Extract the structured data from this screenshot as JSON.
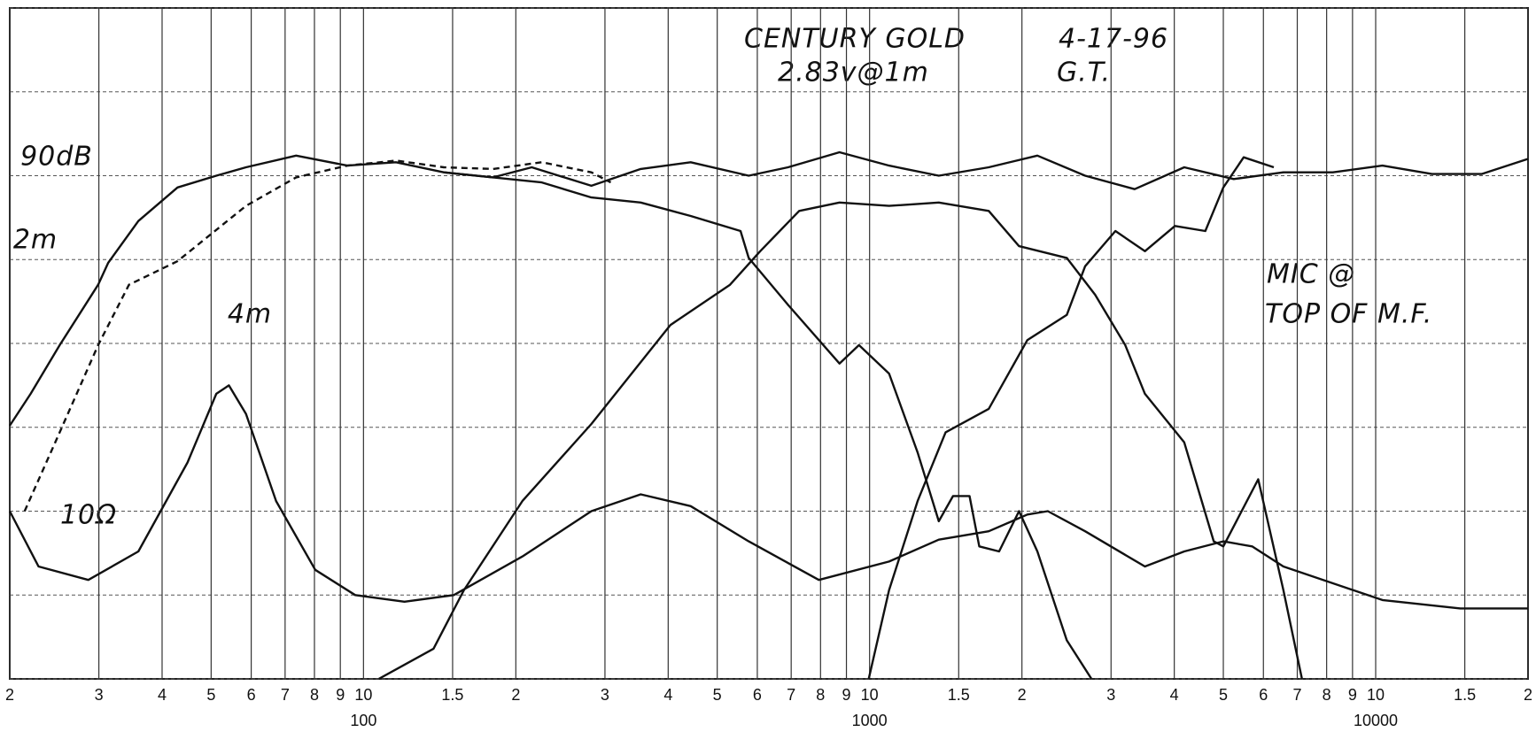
{
  "chart_data": {
    "type": "line",
    "annotations": [
      "CENTURY GOLD",
      "2.83v@1m",
      "4-17-96",
      "G.T.",
      "90dB",
      "2m",
      "4m",
      "10Ω",
      "MIC @",
      "TOP OF M.F."
    ],
    "log_x": true,
    "grid": true,
    "color": "#111",
    "xlim": [
      20,
      20000
    ],
    "ylim": [
      60,
      100
    ],
    "xticks": [
      {
        "value": 20,
        "label": "2"
      },
      {
        "value": 30,
        "label": "3"
      },
      {
        "value": 40,
        "label": "4"
      },
      {
        "value": 50,
        "label": "5"
      },
      {
        "value": 60,
        "label": "6"
      },
      {
        "value": 70,
        "label": "7"
      },
      {
        "value": 80,
        "label": "8"
      },
      {
        "value": 90,
        "label": "9"
      },
      {
        "value": 100,
        "label": "10"
      },
      {
        "value": 150,
        "label": "1.5"
      },
      {
        "value": 200,
        "label": "2"
      },
      {
        "value": 300,
        "label": "3"
      },
      {
        "value": 400,
        "label": "4"
      },
      {
        "value": 500,
        "label": "5"
      },
      {
        "value": 600,
        "label": "6"
      },
      {
        "value": 700,
        "label": "7"
      },
      {
        "value": 800,
        "label": "8"
      },
      {
        "value": 900,
        "label": "9"
      },
      {
        "value": 1000,
        "label": "10"
      },
      {
        "value": 1500,
        "label": "1.5"
      },
      {
        "value": 2000,
        "label": "2"
      },
      {
        "value": 3000,
        "label": "3"
      },
      {
        "value": 4000,
        "label": "4"
      },
      {
        "value": 5000,
        "label": "5"
      },
      {
        "value": 6000,
        "label": "6"
      },
      {
        "value": 7000,
        "label": "7"
      },
      {
        "value": 8000,
        "label": "8"
      },
      {
        "value": 9000,
        "label": "9"
      },
      {
        "value": 10000,
        "label": "10"
      },
      {
        "value": 15000,
        "label": "1.5"
      },
      {
        "value": 20000,
        "label": "2"
      }
    ],
    "xticks_decade": [
      100,
      1000,
      10000
    ],
    "yticks": [
      60,
      65,
      70,
      75,
      80,
      85,
      90,
      95,
      100
    ],
    "series": [
      {
        "color": "#111",
        "x": [
          20,
          22,
          25.1,
          29.9,
          31.3,
          35.9,
          42.9,
          51.2,
          58.6,
          73.6,
          92.9,
          115.9,
          144.1,
          180.4,
          215,
          282,
          353,
          443,
          577,
          690,
          872,
          1093,
          1370,
          1720,
          2146,
          2666,
          3340,
          4186,
          5244,
          6570,
          8230,
          10310,
          12920,
          16190,
          20000
        ],
        "values": [
          75.1,
          77.0,
          79.9,
          83.5,
          84.8,
          87.3,
          89.3,
          90.0,
          90.5,
          91.2,
          90.6,
          90.8,
          90.2,
          89.9,
          90.5,
          89.4,
          90.4,
          90.8,
          90.0,
          90.5,
          91.4,
          90.6,
          90.0,
          90.5,
          91.2,
          90.0,
          89.2,
          90.5,
          89.8,
          90.2,
          90.2,
          90.6,
          90.1,
          90.1,
          91.0
        ]
      },
      {
        "color": "#111",
        "dash": true,
        "x": [
          21.4,
          25.1,
          29.9,
          34.4,
          42.9,
          58.6,
          73.6,
          92.9,
          115.9,
          144.1,
          180.4,
          225,
          282,
          308
        ],
        "values": [
          70.0,
          74.7,
          79.9,
          83.5,
          84.9,
          88.2,
          89.9,
          90.6,
          90.9,
          90.5,
          90.4,
          90.8,
          90.2,
          89.6
        ]
      },
      {
        "color": "#111",
        "x": [
          144,
          225,
          282,
          353,
          443,
          556,
          577,
          690,
          872,
          953,
          1093,
          1244,
          1370,
          1462,
          1576,
          1647,
          1803,
          1974,
          2146,
          2453,
          2745
        ],
        "values": [
          90.2,
          89.6,
          88.7,
          88.4,
          87.6,
          86.7,
          85.1,
          82.3,
          78.8,
          79.9,
          78.2,
          73.5,
          69.4,
          70.9,
          70.9,
          67.9,
          67.6,
          70.0,
          67.6,
          62.3,
          60.0
        ]
      },
      {
        "color": "#111",
        "x": [
          107.2,
          137.5,
          158,
          206,
          282,
          404,
          530,
          608,
          726,
          872,
          1093,
          1370,
          1720,
          1974,
          2453,
          2790,
          3200,
          3500,
          4186,
          4786,
          5000,
          5860,
          6570,
          7150
        ],
        "values": [
          60,
          61.8,
          65.3,
          70.6,
          75.2,
          81.1,
          83.5,
          85.5,
          87.9,
          88.4,
          88.2,
          88.4,
          87.9,
          85.8,
          85.1,
          82.9,
          79.9,
          77.0,
          74.1,
          68.2,
          67.9,
          71.9,
          65.3,
          60
        ]
      },
      {
        "color": "#111",
        "x": [
          996,
          1093,
          1244,
          1413,
          1720,
          2050,
          2453,
          2666,
          3060,
          3500,
          4012,
          4606,
          5000,
          5486,
          6290
        ],
        "values": [
          60,
          65.3,
          70.6,
          74.7,
          76.1,
          80.2,
          81.7,
          84.6,
          86.7,
          85.5,
          87.0,
          86.7,
          89.3,
          91.1,
          90.5
        ]
      },
      {
        "color": "#111",
        "x": [
          20,
          22.8,
          28.6,
          35.9,
          44.9,
          51.2,
          54.2,
          58.6,
          67.2,
          80.3,
          96.3,
          120.5,
          150.8,
          206,
          282,
          353,
          443,
          577,
          794,
          1093,
          1370,
          1720,
          2050,
          2250,
          2666,
          3500,
          4186,
          5000,
          5700,
          6570,
          10310,
          14700,
          20000
        ],
        "values": [
          70,
          66.7,
          65.9,
          67.6,
          72.9,
          77.0,
          77.5,
          75.8,
          70.6,
          66.5,
          65.0,
          64.6,
          65.0,
          67.3,
          70.0,
          71.0,
          70.3,
          68.2,
          65.9,
          67.0,
          68.3,
          68.8,
          69.8,
          70.0,
          68.8,
          66.7,
          67.6,
          68.2,
          67.9,
          66.7,
          64.7,
          64.2,
          64.2
        ]
      }
    ]
  }
}
